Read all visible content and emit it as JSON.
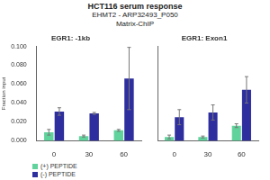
{
  "title": "HCT116 serum response",
  "subtitle": [
    "EHMT2 - ARP32493_P050",
    "Matrix-ChIP"
  ],
  "chart_data": [
    {
      "type": "bar",
      "title": "EGR1: -1kb",
      "y_label": "Fraction input",
      "categories": [
        "0",
        "30",
        "60"
      ],
      "series": [
        {
          "name": "(+) PEPTIDE",
          "color": "#5fd39b",
          "values": [
            0.009,
            0.005,
            0.011
          ],
          "errors": [
            0.003,
            0.001,
            0.001
          ]
        },
        {
          "name": "(-) PEPTIDE",
          "color": "#2e2e9e",
          "values": [
            0.031,
            0.029,
            0.066
          ],
          "errors": [
            0.004,
            0.001,
            0.033
          ]
        }
      ],
      "ylim": [
        0,
        0.1
      ],
      "yticks": [
        {
          "value": 0,
          "label": "0.000"
        },
        {
          "value": 0.02,
          "label": "0.020"
        },
        {
          "value": 0.04,
          "label": "0.040"
        },
        {
          "value": 0.06,
          "label": "0.060"
        },
        {
          "value": 0.08,
          "label": "0.080"
        },
        {
          "value": 0.1,
          "label": "0.100"
        }
      ],
      "grid": false,
      "legend": "bottom"
    },
    {
      "type": "bar",
      "title": "EGR1: Exon1",
      "categories": [
        "0",
        "30",
        "60"
      ],
      "series": [
        {
          "name": "(+) PEPTIDE",
          "color": "#5fd39b",
          "values": [
            0.004,
            0.004,
            0.016
          ],
          "errors": [
            0.002,
            0.001,
            0.002
          ]
        },
        {
          "name": "(-) PEPTIDE",
          "color": "#2e2e9e",
          "values": [
            0.025,
            0.03,
            0.054
          ],
          "errors": [
            0.008,
            0.008,
            0.014
          ]
        }
      ],
      "ylim": [
        0,
        0.1
      ],
      "yticks": [
        {
          "value": 0,
          "label": "0.000"
        },
        {
          "value": 0.02,
          "label": "0.020"
        },
        {
          "value": 0.04,
          "label": "0.040"
        },
        {
          "value": 0.06,
          "label": "0.060"
        },
        {
          "value": 0.08,
          "label": "0.080"
        },
        {
          "value": 0.1,
          "label": "0.100"
        }
      ],
      "grid": false,
      "tick_labels": "x"
    }
  ]
}
